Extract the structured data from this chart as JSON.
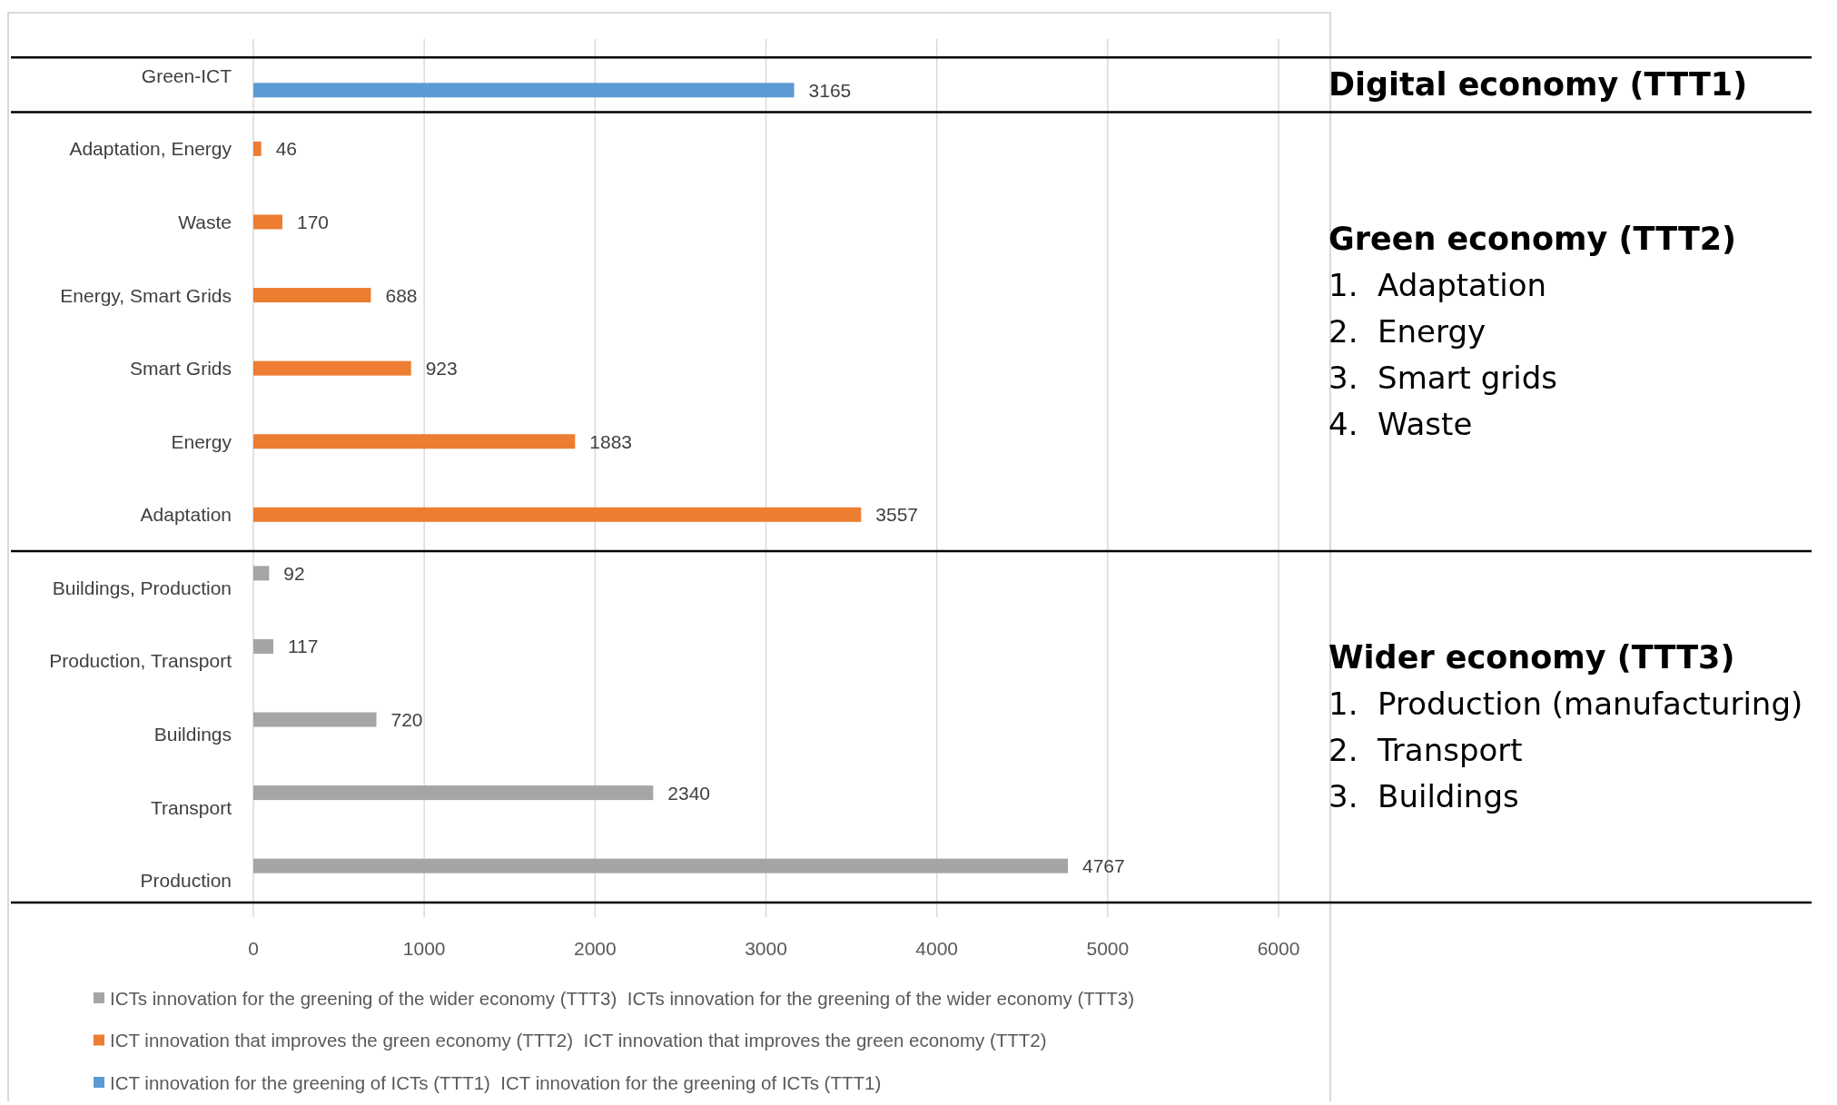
{
  "chart_data": {
    "type": "bar",
    "orientation": "horizontal",
    "categories": [
      "Green-ICT",
      "Adaptation, Energy",
      "Waste",
      "Energy, Smart Grids",
      "Smart Grids",
      "Energy",
      "Adaptation",
      "Buildings, Production",
      "Production, Transport",
      "Buildings",
      "Transport",
      "Production"
    ],
    "series": [
      {
        "name": "ICTs innovation for the greening of the wider economy (TTT3)  ICTs innovation for the greening of the wider economy (TTT3)",
        "color": "#a5a5a5",
        "values": [
          null,
          null,
          null,
          null,
          null,
          null,
          null,
          92,
          117,
          720,
          2340,
          4767
        ]
      },
      {
        "name": "ICT innovation that improves the green economy (TTT2)  ICT innovation that improves the green economy (TTT2)",
        "color": "#ed7d31",
        "values": [
          null,
          46,
          170,
          688,
          923,
          1883,
          3557,
          null,
          null,
          null,
          null,
          null
        ]
      },
      {
        "name": "ICT innovation for the greening of ICTs (TTT1)  ICT innovation for the greening of ICTs (TTT1)",
        "color": "#5b9bd5",
        "values": [
          3165,
          null,
          null,
          null,
          null,
          null,
          null,
          null,
          null,
          null,
          null,
          null
        ]
      }
    ],
    "xlim": [
      0,
      6000
    ],
    "xticks": [
      0,
      1000,
      2000,
      3000,
      4000,
      5000,
      6000
    ],
    "grid": "x",
    "data_labels": true,
    "legend": "bottom",
    "annotations": [
      "Digital economy (TTT1)",
      "Green economy (TTT2)\n1.  Adaptation\n2.  Energy\n3.  Smart grids\n4.  Waste",
      "Wider economy (TTT3)\n1.  Production (manufacturing)\n2.  Transport\n3.  Buildings"
    ]
  }
}
